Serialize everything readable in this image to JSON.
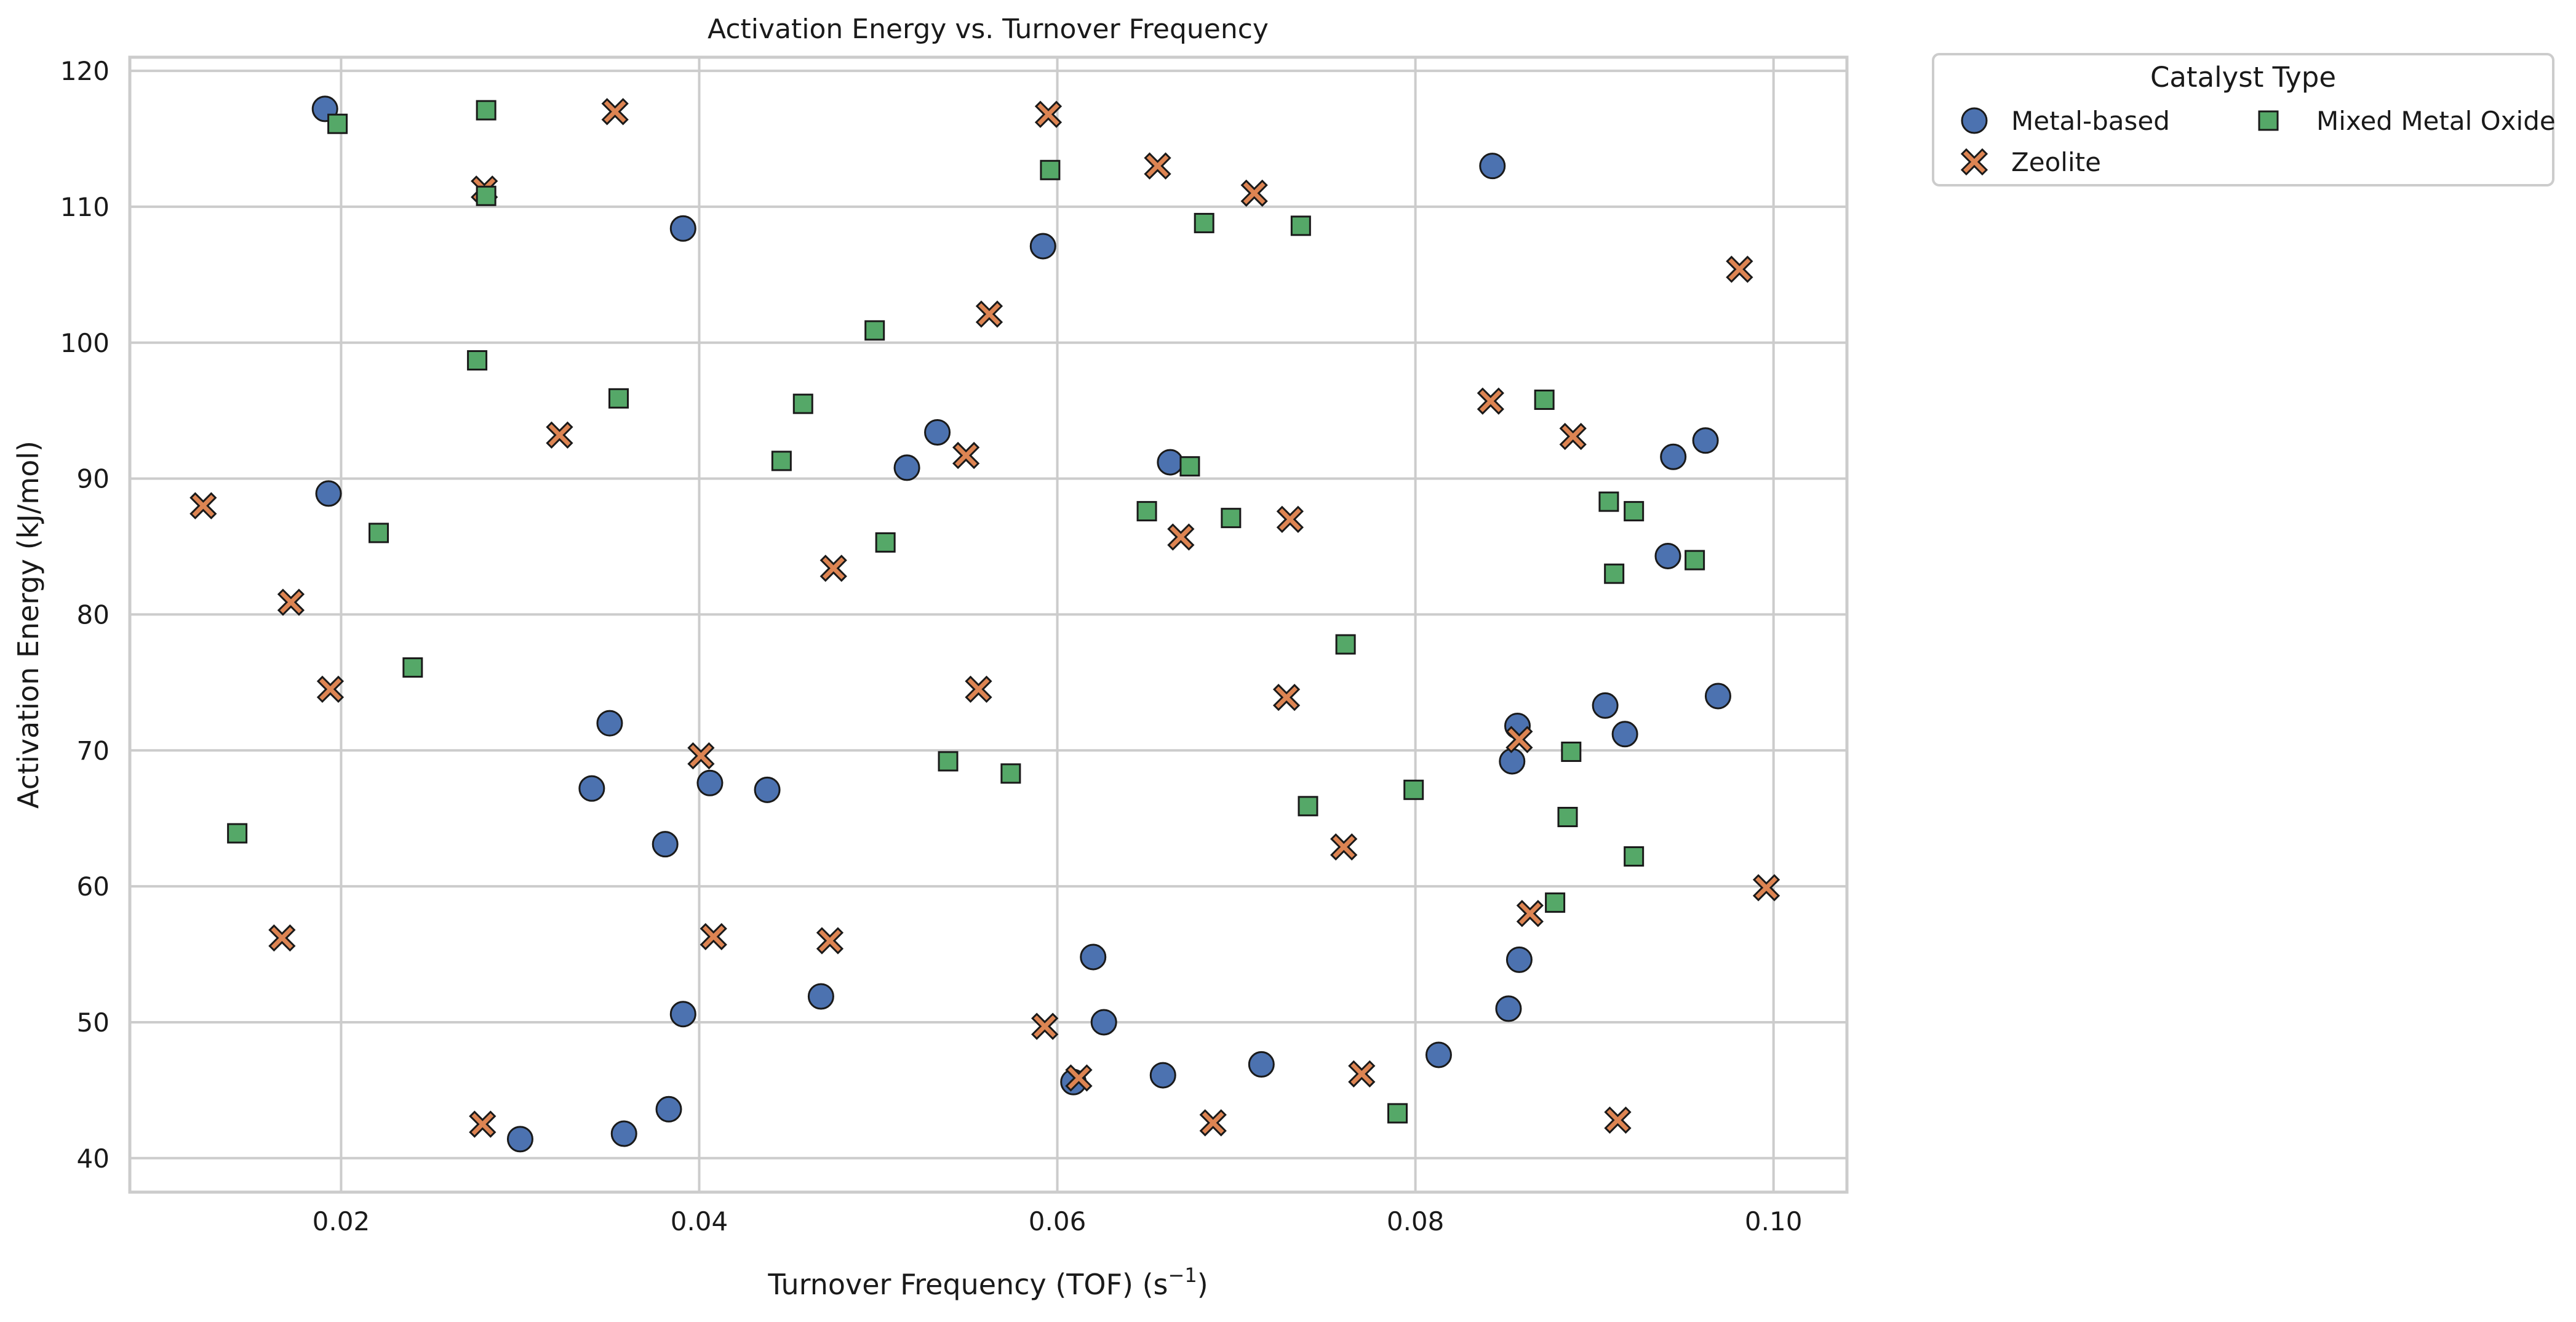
{
  "chart_data": {
    "type": "scatter",
    "title": "Activation Energy vs. Turnover Frequency",
    "xlabel": "Turnover Frequency (TOF) (s",
    "xlabel_sup": "−1",
    "xlabel_end": ")",
    "ylabel": "Activation Energy (kJ/mol)",
    "xlim": [
      0.0082,
      0.1041
    ],
    "ylim": [
      37.5,
      121.0
    ],
    "x_ticks": [
      0.02,
      0.04,
      0.06,
      0.08,
      0.1
    ],
    "x_tick_labels": [
      "0.02",
      "0.04",
      "0.06",
      "0.08",
      "0.10"
    ],
    "y_ticks": [
      40,
      50,
      60,
      70,
      80,
      90,
      100,
      110,
      120
    ],
    "y_tick_labels": [
      "40",
      "50",
      "60",
      "70",
      "80",
      "90",
      "100",
      "110",
      "120"
    ],
    "grid": true,
    "legend": {
      "title": "Catalyst Type",
      "placement": "outside-upper-right",
      "columns": 2
    },
    "series": [
      {
        "name": "Metal-based",
        "marker": "circle",
        "color": "#4c72b0",
        "points": [
          {
            "x": 0.0191,
            "y": 117.2
          },
          {
            "x": 0.0193,
            "y": 88.9
          },
          {
            "x": 0.0391,
            "y": 108.4
          },
          {
            "x": 0.035,
            "y": 72.0
          },
          {
            "x": 0.034,
            "y": 67.2
          },
          {
            "x": 0.0406,
            "y": 67.6
          },
          {
            "x": 0.0438,
            "y": 67.1
          },
          {
            "x": 0.0381,
            "y": 63.1
          },
          {
            "x": 0.0391,
            "y": 50.6
          },
          {
            "x": 0.0468,
            "y": 51.9
          },
          {
            "x": 0.03,
            "y": 41.4
          },
          {
            "x": 0.0358,
            "y": 41.8
          },
          {
            "x": 0.0383,
            "y": 43.6
          },
          {
            "x": 0.0533,
            "y": 93.4
          },
          {
            "x": 0.0516,
            "y": 90.8
          },
          {
            "x": 0.0592,
            "y": 107.1
          },
          {
            "x": 0.062,
            "y": 54.8
          },
          {
            "x": 0.0626,
            "y": 50.0
          },
          {
            "x": 0.0609,
            "y": 45.6
          },
          {
            "x": 0.0659,
            "y": 46.1
          },
          {
            "x": 0.0663,
            "y": 91.2
          },
          {
            "x": 0.0714,
            "y": 46.9
          },
          {
            "x": 0.0843,
            "y": 113.0
          },
          {
            "x": 0.0813,
            "y": 47.6
          },
          {
            "x": 0.0857,
            "y": 71.8
          },
          {
            "x": 0.0854,
            "y": 69.2
          },
          {
            "x": 0.0858,
            "y": 54.6
          },
          {
            "x": 0.0852,
            "y": 51.0
          },
          {
            "x": 0.0906,
            "y": 73.3
          },
          {
            "x": 0.0917,
            "y": 71.2
          },
          {
            "x": 0.0941,
            "y": 84.3
          },
          {
            "x": 0.0944,
            "y": 91.6
          },
          {
            "x": 0.0962,
            "y": 92.8
          },
          {
            "x": 0.0969,
            "y": 74.0
          }
        ]
      },
      {
        "name": "Zeolite",
        "marker": "x",
        "color": "#dd8452",
        "points": [
          {
            "x": 0.0123,
            "y": 88.0
          },
          {
            "x": 0.0172,
            "y": 80.9
          },
          {
            "x": 0.0194,
            "y": 74.5
          },
          {
            "x": 0.0167,
            "y": 56.2
          },
          {
            "x": 0.028,
            "y": 111.3
          },
          {
            "x": 0.0353,
            "y": 117.0
          },
          {
            "x": 0.0322,
            "y": 93.2
          },
          {
            "x": 0.0279,
            "y": 42.5
          },
          {
            "x": 0.0401,
            "y": 69.6
          },
          {
            "x": 0.0408,
            "y": 56.3
          },
          {
            "x": 0.0475,
            "y": 83.4
          },
          {
            "x": 0.0473,
            "y": 56.0
          },
          {
            "x": 0.0549,
            "y": 91.7
          },
          {
            "x": 0.0562,
            "y": 102.1
          },
          {
            "x": 0.0556,
            "y": 74.5
          },
          {
            "x": 0.0595,
            "y": 116.8
          },
          {
            "x": 0.0593,
            "y": 49.7
          },
          {
            "x": 0.0612,
            "y": 45.9
          },
          {
            "x": 0.0656,
            "y": 113.0
          },
          {
            "x": 0.0669,
            "y": 85.7
          },
          {
            "x": 0.0687,
            "y": 42.6
          },
          {
            "x": 0.071,
            "y": 111.0
          },
          {
            "x": 0.073,
            "y": 87.0
          },
          {
            "x": 0.0728,
            "y": 73.9
          },
          {
            "x": 0.076,
            "y": 62.9
          },
          {
            "x": 0.077,
            "y": 46.2
          },
          {
            "x": 0.0842,
            "y": 95.7
          },
          {
            "x": 0.0888,
            "y": 93.1
          },
          {
            "x": 0.0858,
            "y": 70.8
          },
          {
            "x": 0.0864,
            "y": 58.0
          },
          {
            "x": 0.0913,
            "y": 42.8
          },
          {
            "x": 0.0981,
            "y": 105.4
          },
          {
            "x": 0.0996,
            "y": 59.9
          }
        ]
      },
      {
        "name": "Mixed Metal Oxide",
        "marker": "square",
        "color": "#55a868",
        "points": [
          {
            "x": 0.0142,
            "y": 63.9
          },
          {
            "x": 0.0198,
            "y": 116.1
          },
          {
            "x": 0.0221,
            "y": 86.0
          },
          {
            "x": 0.024,
            "y": 76.1
          },
          {
            "x": 0.0276,
            "y": 98.7
          },
          {
            "x": 0.0281,
            "y": 117.1
          },
          {
            "x": 0.0281,
            "y": 110.8
          },
          {
            "x": 0.0355,
            "y": 95.9
          },
          {
            "x": 0.0446,
            "y": 91.3
          },
          {
            "x": 0.0458,
            "y": 95.5
          },
          {
            "x": 0.0498,
            "y": 100.9
          },
          {
            "x": 0.0504,
            "y": 85.3
          },
          {
            "x": 0.0539,
            "y": 69.2
          },
          {
            "x": 0.0574,
            "y": 68.3
          },
          {
            "x": 0.0596,
            "y": 112.7
          },
          {
            "x": 0.065,
            "y": 87.6
          },
          {
            "x": 0.0674,
            "y": 90.9
          },
          {
            "x": 0.0682,
            "y": 108.8
          },
          {
            "x": 0.0697,
            "y": 87.1
          },
          {
            "x": 0.0736,
            "y": 108.6
          },
          {
            "x": 0.074,
            "y": 65.9
          },
          {
            "x": 0.0761,
            "y": 77.8
          },
          {
            "x": 0.079,
            "y": 43.3
          },
          {
            "x": 0.0799,
            "y": 67.1
          },
          {
            "x": 0.0872,
            "y": 95.8
          },
          {
            "x": 0.0878,
            "y": 58.8
          },
          {
            "x": 0.0887,
            "y": 69.9
          },
          {
            "x": 0.0885,
            "y": 65.1
          },
          {
            "x": 0.0908,
            "y": 88.3
          },
          {
            "x": 0.0911,
            "y": 83.0
          },
          {
            "x": 0.0922,
            "y": 87.6
          },
          {
            "x": 0.0922,
            "y": 62.2
          },
          {
            "x": 0.0956,
            "y": 84.0
          }
        ]
      }
    ]
  }
}
